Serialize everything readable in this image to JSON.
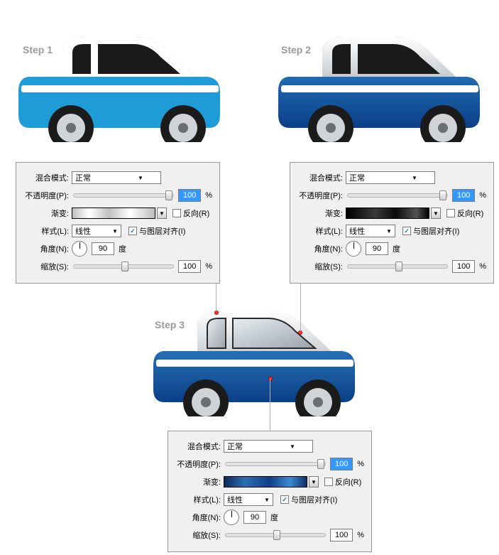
{
  "steps": {
    "s1": "Step 1",
    "s2": "Step 2",
    "s3": "Step 3"
  },
  "labels": {
    "blend": "混合模式:",
    "opacity": "不透明度(P):",
    "gradient": "渐变:",
    "reverse": "反向(R)",
    "style": "样式(L):",
    "alignLayer": "与图层对齐(I)",
    "angle": "角度(N):",
    "angleUnit": "度",
    "scale": "缩放(S):",
    "percent": "%"
  },
  "panel1": {
    "blend": "正常",
    "opacity": "100",
    "style": "线性",
    "angle": "90",
    "scale": "100",
    "gradient_css": "linear-gradient(90deg,#bfbfbf,#ffffff 20%,#c0c0c0 45%,#ffffff 70%,#bcbcbc)",
    "opacity_thumb": "92%",
    "scale_thumb": "48%"
  },
  "panel2": {
    "blend": "正常",
    "opacity": "100",
    "style": "线性",
    "angle": "90",
    "scale": "100",
    "gradient_css": "linear-gradient(90deg,#000000,#3a3a3a 35%,#0a0a0a 60%,#545454 85%,#000000)",
    "opacity_thumb": "92%",
    "scale_thumb": "48%"
  },
  "panel3": {
    "blend": "正常",
    "opacity": "100",
    "style": "线性",
    "angle": "90",
    "scale": "100",
    "gradient_css": "linear-gradient(90deg,#0a2a5a,#2b6fb3 25%,#0d3f86 55%,#3a8bd4 80%,#0b2e66)",
    "opacity_thumb": "92%",
    "scale_thumb": "48%"
  },
  "car1": {
    "body": "#1f9cd8",
    "cab": "#ffffff",
    "stripe": "#ffffff",
    "window": "#1a1a1a",
    "tire": "#1b1b1b",
    "rim": "#d0d4d8"
  },
  "car2": {
    "body_css": "linear-gradient(180deg,#2f8ed6,#0b3f87)",
    "cab_css": "linear-gradient(180deg,#ffffff,#c8ccd0)",
    "stripe": "#ffffff",
    "window": "#1a1a1a",
    "tire": "#1b1b1b",
    "rim": "#d0d4d8"
  },
  "car3": {
    "body_css": "linear-gradient(180deg,#3a95d8,#0b3f87)",
    "cab_css": "linear-gradient(180deg,#ffffff,#cfd3d7)",
    "stripe": "#ffffff",
    "window_css": "linear-gradient(160deg,#e8eef2,#9aa3a9)",
    "tire": "#1b1b1b",
    "rim": "#d0d4d8"
  }
}
